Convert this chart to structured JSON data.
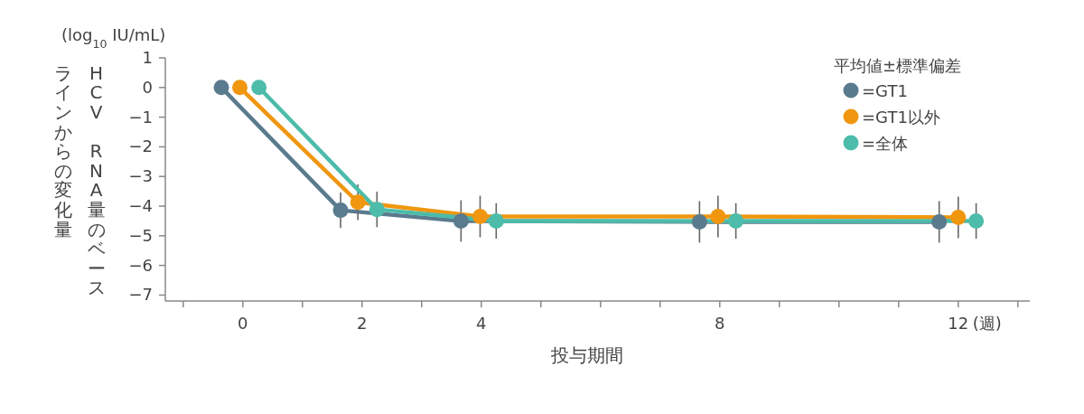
{
  "chart_data": {
    "type": "line",
    "ylabel": "HCV RNA量のベースラインからの変化量",
    "xlabel": "投与期間",
    "legend_title": "平均値±標準偏差",
    "annotations": [
      "(log$_{10}$ IU/mL)",
      "(週)"
    ],
    "xlim": [
      -1.3,
      13.2
    ],
    "xticks": [
      {
        "value": -1,
        "label": null
      },
      0,
      {
        "value": 1,
        "label": null
      },
      2,
      {
        "value": 3,
        "label": null
      },
      4,
      {
        "value": 5,
        "label": null
      },
      {
        "value": 6,
        "label": null
      },
      {
        "value": 7,
        "label": null
      },
      8,
      {
        "value": 9,
        "label": null
      },
      {
        "value": 10,
        "label": null
      },
      {
        "value": 11,
        "label": null
      },
      12,
      {
        "value": 13,
        "label": null
      }
    ],
    "ylim": [
      -7.2,
      1
    ],
    "yticks": [
      1,
      0,
      {
        "value": -1,
        "label": "−1"
      },
      {
        "value": -2,
        "label": "−2"
      },
      {
        "value": -3,
        "label": "−3"
      },
      {
        "value": -4,
        "label": "−4"
      },
      {
        "value": -5,
        "label": "−5"
      },
      {
        "value": -6,
        "label": "−6"
      },
      {
        "value": -7,
        "label": "−7"
      }
    ],
    "legend": "top right",
    "marker": "circle",
    "grid": false,
    "series": [
      {
        "name": "=GT1",
        "color": "#5a7a8e",
        "x": [
          -0.36,
          1.64,
          3.66,
          7.66,
          11.68
        ],
        "values": [
          0,
          -4.14,
          -4.5,
          -4.53,
          -4.53
        ],
        "errors": [
          null,
          0.6,
          0.7,
          0.7,
          0.7
        ]
      },
      {
        "name": "=GT1以外",
        "color": "#f0960f",
        "x": [
          -0.05,
          1.93,
          3.98,
          7.97,
          12.0
        ],
        "values": [
          0,
          -3.87,
          -4.35,
          -4.35,
          -4.38
        ],
        "errors": [
          null,
          0.6,
          0.7,
          0.7,
          0.7
        ]
      },
      {
        "name": "=全体",
        "color": "#4dbcaa",
        "x": [
          0.27,
          2.25,
          4.25,
          8.27,
          12.3
        ],
        "values": [
          0,
          -4.11,
          -4.5,
          -4.5,
          -4.5
        ],
        "errors": [
          null,
          0.6,
          0.6,
          0.6,
          0.6
        ]
      }
    ]
  }
}
